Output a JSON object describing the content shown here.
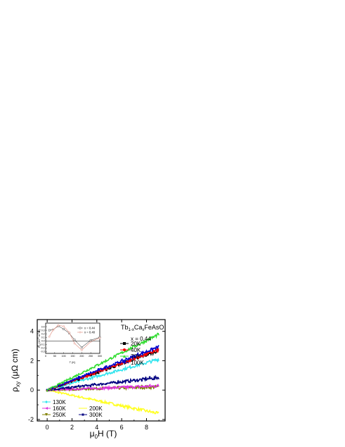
{
  "chart_data": [
    {
      "type": "scatter",
      "role": "main",
      "xlabel": "μ0H (T)",
      "ylabel": "ρxy (μΩ cm)",
      "xlim": [
        -0.8,
        9.5
      ],
      "ylim": [
        -2.1,
        4.8
      ],
      "x_ticks": [
        "0",
        "2",
        "4",
        "6",
        "8"
      ],
      "y_ticks": [
        "-2",
        "0",
        "2",
        "4"
      ],
      "compound_label": "Tb1-xCaxFeAsO",
      "composition_label": "x = 0.44",
      "legend_right": [
        "20K",
        "40K",
        "70K",
        "100K"
      ],
      "legend_left": [
        "130K",
        "160K",
        "250K",
        "200K",
        "300K"
      ],
      "series": [
        {
          "name": "20K",
          "color": "#000000",
          "marker": "square",
          "x": [
            0,
            9
          ],
          "y": [
            0,
            2.7
          ]
        },
        {
          "name": "40K",
          "color": "#ff0000",
          "marker": "circle",
          "x": [
            0,
            9
          ],
          "y": [
            0,
            2.75
          ]
        },
        {
          "name": "70K",
          "color": "#33dd33",
          "marker": "triangle-up",
          "x": [
            0,
            9
          ],
          "y": [
            0,
            3.8
          ]
        },
        {
          "name": "100K",
          "color": "#0000cc",
          "marker": "triangle-down",
          "x": [
            0,
            9
          ],
          "y": [
            0,
            2.95
          ]
        },
        {
          "name": "130K",
          "color": "#33e5ee",
          "marker": "diamond",
          "x": [
            0,
            9
          ],
          "y": [
            0,
            2.1
          ]
        },
        {
          "name": "160K",
          "color": "#dd33dd",
          "marker": "triangle-left",
          "x": [
            0,
            9
          ],
          "y": [
            0,
            0.28
          ]
        },
        {
          "name": "250K",
          "color": "#808000",
          "marker": "triangle-down",
          "x": [
            0,
            9
          ],
          "y": [
            0,
            0.22
          ]
        },
        {
          "name": "200K",
          "color": "#ffff22",
          "marker": "line",
          "x": [
            0,
            9
          ],
          "y": [
            0,
            -1.6
          ]
        },
        {
          "name": "300K",
          "color": "#000080",
          "marker": "star",
          "x": [
            0,
            9
          ],
          "y": [
            0,
            0.85
          ]
        }
      ]
    },
    {
      "type": "line",
      "role": "inset",
      "xlabel": "T (K)",
      "ylabel": "RH (10-8 m3/C)",
      "xlim": [
        0,
        300
      ],
      "ylim": [
        -0.35,
        0.5
      ],
      "x_ticks": [
        "0",
        "50",
        "100",
        "150",
        "200",
        "250",
        "300"
      ],
      "y_ticks": [
        "-0.3",
        "-0.2",
        "-0.1",
        "0.0",
        "0.1",
        "0.2",
        "0.3",
        "0.4"
      ],
      "series": [
        {
          "name": "x = 0.44",
          "color": "#555555",
          "marker": "open-square",
          "x": [
            20,
            40,
            70,
            100,
            130,
            160,
            200,
            250,
            300
          ],
          "y": [
            0.3,
            0.31,
            0.42,
            0.33,
            0.22,
            0.03,
            -0.18,
            0.02,
            0.1
          ]
        },
        {
          "name": "x = 0.48",
          "color": "#e08a7a",
          "marker": "open-circle",
          "x": [
            20,
            40,
            70,
            100,
            130,
            160,
            200,
            250,
            300
          ],
          "y": [
            0.12,
            0.3,
            0.44,
            0.41,
            0.24,
            -0.07,
            -0.26,
            -0.02,
            0.08
          ]
        }
      ]
    }
  ]
}
